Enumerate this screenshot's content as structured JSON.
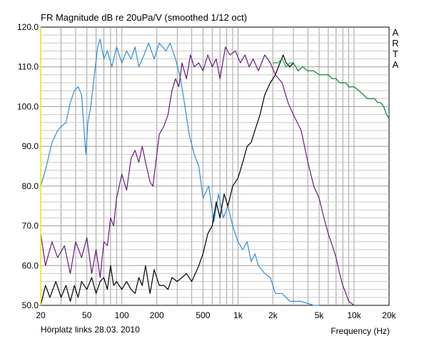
{
  "chart_data": {
    "type": "line",
    "title": "FR Magnitude dB re 20uPa/V (smoothed 1/12 oct)",
    "xlabel": "Frequency (Hz)",
    "ylabel": "",
    "footer_left": "Hörplatz links 28.03. 2010",
    "watermark": "ARTA",
    "x_scale": "log",
    "xlim": [
      20,
      20000
    ],
    "ylim": [
      50,
      120
    ],
    "grid": true,
    "legend": "none",
    "x_tick_labels": [
      {
        "value": 20,
        "label": "20"
      },
      {
        "value": 50,
        "label": "50"
      },
      {
        "value": 100,
        "label": "100"
      },
      {
        "value": 200,
        "label": "200"
      },
      {
        "value": 500,
        "label": "500"
      },
      {
        "value": 1000,
        "label": "1k"
      },
      {
        "value": 2000,
        "label": "2k"
      },
      {
        "value": 5000,
        "label": "5k"
      },
      {
        "value": 10000,
        "label": "10k"
      },
      {
        "value": 20000,
        "label": "20k"
      }
    ],
    "y_tick_labels": [
      {
        "value": 50,
        "label": "50.0"
      },
      {
        "value": 60,
        "label": "60.0"
      },
      {
        "value": 70,
        "label": "70.0"
      },
      {
        "value": 80,
        "label": "80.0"
      },
      {
        "value": 90,
        "label": "90.0"
      },
      {
        "value": 100,
        "label": "100.0"
      },
      {
        "value": 110,
        "label": "110.0"
      },
      {
        "value": 120,
        "label": "120.0"
      }
    ],
    "series": [
      {
        "color": "#2f8fd0",
        "points": [
          [
            20,
            80
          ],
          [
            22,
            84
          ],
          [
            25,
            91
          ],
          [
            28,
            94
          ],
          [
            30,
            95
          ],
          [
            33,
            96
          ],
          [
            36,
            101
          ],
          [
            39,
            104
          ],
          [
            42,
            105
          ],
          [
            45,
            103
          ],
          [
            47,
            95
          ],
          [
            49,
            88
          ],
          [
            51,
            96
          ],
          [
            54,
            100
          ],
          [
            58,
            108
          ],
          [
            62,
            115
          ],
          [
            65,
            117
          ],
          [
            70,
            112
          ],
          [
            75,
            114
          ],
          [
            82,
            110
          ],
          [
            90,
            115
          ],
          [
            100,
            111
          ],
          [
            110,
            114
          ],
          [
            120,
            112
          ],
          [
            130,
            115
          ],
          [
            140,
            110
          ],
          [
            155,
            113
          ],
          [
            170,
            116
          ],
          [
            190,
            112
          ],
          [
            210,
            116
          ],
          [
            240,
            114
          ],
          [
            260,
            116
          ],
          [
            290,
            112
          ],
          [
            320,
            107
          ],
          [
            350,
            100
          ],
          [
            380,
            93
          ],
          [
            420,
            88
          ],
          [
            460,
            85
          ],
          [
            500,
            77
          ],
          [
            560,
            80
          ],
          [
            620,
            71
          ],
          [
            680,
            78
          ],
          [
            750,
            72
          ],
          [
            820,
            75
          ],
          [
            900,
            70
          ],
          [
            1000,
            66
          ],
          [
            1100,
            64
          ],
          [
            1200,
            66
          ],
          [
            1300,
            61
          ],
          [
            1400,
            63
          ],
          [
            1500,
            60
          ],
          [
            1700,
            58
          ],
          [
            1900,
            57
          ],
          [
            2100,
            53
          ],
          [
            2400,
            53
          ],
          [
            2800,
            51
          ],
          [
            3500,
            51
          ],
          [
            4500,
            50
          ],
          [
            5000,
            50
          ]
        ]
      },
      {
        "color": "#6a1a7a",
        "points": [
          [
            20,
            68
          ],
          [
            22,
            60
          ],
          [
            25,
            66
          ],
          [
            28,
            62
          ],
          [
            32,
            65
          ],
          [
            36,
            58
          ],
          [
            40,
            66
          ],
          [
            45,
            62
          ],
          [
            50,
            67
          ],
          [
            55,
            58
          ],
          [
            60,
            64
          ],
          [
            65,
            57
          ],
          [
            70,
            66
          ],
          [
            75,
            65
          ],
          [
            80,
            72
          ],
          [
            85,
            70
          ],
          [
            90,
            77
          ],
          [
            100,
            83
          ],
          [
            110,
            79
          ],
          [
            120,
            87
          ],
          [
            130,
            89
          ],
          [
            140,
            86
          ],
          [
            150,
            90
          ],
          [
            160,
            86
          ],
          [
            175,
            81
          ],
          [
            185,
            80
          ],
          [
            200,
            88
          ],
          [
            210,
            93
          ],
          [
            230,
            95
          ],
          [
            250,
            98
          ],
          [
            270,
            104
          ],
          [
            290,
            107
          ],
          [
            310,
            105
          ],
          [
            330,
            111
          ],
          [
            360,
            107
          ],
          [
            390,
            113
          ],
          [
            420,
            110
          ],
          [
            460,
            111
          ],
          [
            500,
            109
          ],
          [
            550,
            113
          ],
          [
            600,
            110
          ],
          [
            650,
            112
          ],
          [
            700,
            107
          ],
          [
            780,
            115
          ],
          [
            850,
            113
          ],
          [
            950,
            114
          ],
          [
            1050,
            111
          ],
          [
            1150,
            113
          ],
          [
            1250,
            110
          ],
          [
            1350,
            112
          ],
          [
            1500,
            109
          ],
          [
            1700,
            113
          ],
          [
            1900,
            111
          ],
          [
            2100,
            108
          ],
          [
            2400,
            106
          ],
          [
            2700,
            101
          ],
          [
            3000,
            98
          ],
          [
            3500,
            94
          ],
          [
            4000,
            86
          ],
          [
            4500,
            80
          ],
          [
            5000,
            77
          ],
          [
            5500,
            72
          ],
          [
            6000,
            68
          ],
          [
            6500,
            65
          ],
          [
            7000,
            62
          ],
          [
            7500,
            58
          ],
          [
            8000,
            55
          ],
          [
            9000,
            51
          ],
          [
            10000,
            50
          ]
        ]
      },
      {
        "color": "#000000",
        "points": [
          [
            20,
            50
          ],
          [
            22,
            55
          ],
          [
            24,
            52
          ],
          [
            27,
            56
          ],
          [
            30,
            52
          ],
          [
            33,
            55
          ],
          [
            36,
            51
          ],
          [
            39,
            55
          ],
          [
            42,
            52
          ],
          [
            45,
            56
          ],
          [
            50,
            54
          ],
          [
            55,
            57
          ],
          [
            60,
            53
          ],
          [
            65,
            56
          ],
          [
            70,
            57
          ],
          [
            75,
            54
          ],
          [
            80,
            60
          ],
          [
            85,
            55
          ],
          [
            90,
            56
          ],
          [
            100,
            54
          ],
          [
            110,
            56
          ],
          [
            120,
            54
          ],
          [
            130,
            53
          ],
          [
            140,
            57
          ],
          [
            150,
            55
          ],
          [
            160,
            60
          ],
          [
            175,
            53
          ],
          [
            190,
            59
          ],
          [
            210,
            55
          ],
          [
            230,
            55
          ],
          [
            250,
            54
          ],
          [
            270,
            57
          ],
          [
            300,
            56
          ],
          [
            330,
            57
          ],
          [
            360,
            58
          ],
          [
            400,
            56
          ],
          [
            430,
            58
          ],
          [
            460,
            60
          ],
          [
            500,
            63
          ],
          [
            550,
            68
          ],
          [
            600,
            70
          ],
          [
            650,
            76
          ],
          [
            700,
            72
          ],
          [
            760,
            78
          ],
          [
            820,
            75
          ],
          [
            900,
            80
          ],
          [
            950,
            81
          ],
          [
            1000,
            82
          ],
          [
            1100,
            86
          ],
          [
            1200,
            90
          ],
          [
            1300,
            91
          ],
          [
            1400,
            94
          ],
          [
            1550,
            98
          ],
          [
            1700,
            103
          ],
          [
            1900,
            106
          ],
          [
            2100,
            108
          ],
          [
            2300,
            111
          ],
          [
            2450,
            113
          ],
          [
            2600,
            111
          ],
          [
            2800,
            110
          ],
          [
            3000,
            111
          ],
          [
            3300,
            109
          ],
          [
            3600,
            110
          ],
          [
            4000,
            109
          ],
          [
            4500,
            109
          ],
          [
            5000,
            108
          ],
          [
            5500,
            108
          ],
          [
            6000,
            108
          ],
          [
            6500,
            107
          ],
          [
            7000,
            107
          ],
          [
            7500,
            106
          ],
          [
            8000,
            106
          ],
          [
            8500,
            106
          ],
          [
            9000,
            105
          ],
          [
            10000,
            105
          ],
          [
            11000,
            104
          ],
          [
            12000,
            103
          ],
          [
            13000,
            102
          ],
          [
            14000,
            102
          ],
          [
            15000,
            102
          ],
          [
            16000,
            101
          ],
          [
            17000,
            101
          ],
          [
            18000,
            100
          ],
          [
            19000,
            98
          ],
          [
            20000,
            97
          ]
        ]
      },
      {
        "color": "#1e9e50",
        "points": [
          [
            2000,
            111
          ],
          [
            2200,
            111
          ],
          [
            2400,
            112
          ],
          [
            2600,
            110
          ],
          [
            2800,
            111
          ],
          [
            3000,
            111
          ],
          [
            3300,
            109
          ],
          [
            3600,
            110
          ],
          [
            4000,
            109
          ],
          [
            4500,
            109
          ],
          [
            5000,
            108
          ],
          [
            5500,
            108
          ],
          [
            6000,
            108
          ],
          [
            6500,
            107
          ],
          [
            7000,
            107
          ],
          [
            7500,
            106
          ],
          [
            8000,
            106
          ],
          [
            8500,
            106
          ],
          [
            9000,
            105
          ],
          [
            10000,
            105
          ],
          [
            11000,
            104
          ],
          [
            12000,
            103
          ],
          [
            13000,
            102
          ],
          [
            14000,
            102
          ],
          [
            15000,
            102
          ],
          [
            16000,
            101
          ],
          [
            17000,
            101
          ],
          [
            18000,
            100
          ],
          [
            19000,
            98
          ],
          [
            20000,
            97
          ]
        ]
      }
    ]
  }
}
